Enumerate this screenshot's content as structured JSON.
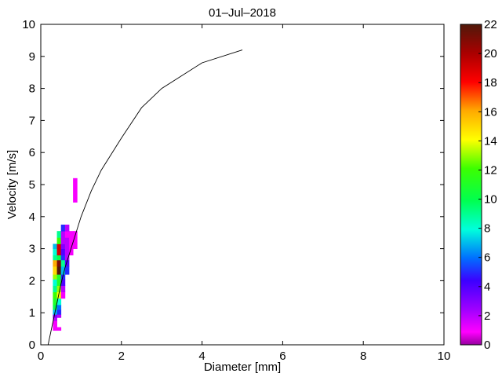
{
  "chart_data": {
    "type": "heatmap",
    "title": "01–Jul–2018",
    "xlabel": "Diameter [mm]",
    "ylabel": "Velocity [m/s]",
    "xlim": [
      0,
      10
    ],
    "ylim": [
      0,
      10
    ],
    "x_ticks": [
      0,
      2,
      4,
      6,
      8,
      10
    ],
    "y_ticks": [
      0,
      1,
      2,
      3,
      4,
      5,
      6,
      7,
      8,
      9,
      10
    ],
    "grid": false,
    "colorbar": {
      "range": [
        0,
        22
      ],
      "ticks": [
        0,
        2,
        4,
        6,
        8,
        10,
        12,
        14,
        16,
        18,
        20,
        22
      ]
    },
    "reference_curve": {
      "x": [
        0.18,
        0.3,
        0.4,
        0.5,
        0.6,
        0.8,
        1.0,
        1.25,
        1.5,
        2.0,
        2.5,
        3.0,
        4.0,
        5.0
      ],
      "y": [
        0.0,
        0.7,
        1.3,
        1.9,
        2.4,
        3.2,
        4.0,
        4.8,
        5.45,
        6.45,
        7.4,
        8.0,
        8.8,
        9.2
      ]
    },
    "cells": {
      "x_edges": [
        0.3,
        0.4,
        0.5,
        0.6,
        0.7,
        0.8,
        0.9
      ],
      "y_edges": [
        0.45,
        0.55,
        0.75,
        0.85,
        0.95,
        1.1,
        1.25,
        1.45,
        1.65,
        1.85,
        2.05,
        2.2,
        2.45,
        2.65,
        2.8,
        3.0,
        3.15,
        3.35,
        3.55,
        3.75,
        4.45,
        5.2
      ],
      "counts": [
        [
          1,
          1,
          0,
          0,
          0,
          0
        ],
        [
          1,
          0,
          0,
          0,
          0,
          0
        ],
        [
          2,
          0,
          0,
          0,
          0,
          0
        ],
        [
          3,
          2,
          0,
          0,
          0,
          0
        ],
        [
          7,
          5,
          0,
          0,
          0,
          0
        ],
        [
          10,
          6,
          0,
          0,
          0,
          0
        ],
        [
          11,
          8,
          0,
          0,
          0,
          0
        ],
        [
          12,
          14,
          1,
          0,
          0,
          0
        ],
        [
          9,
          13,
          2,
          0,
          0,
          0
        ],
        [
          8,
          11,
          4,
          0,
          0,
          0
        ],
        [
          13,
          11,
          5,
          0,
          0,
          0
        ],
        [
          15,
          22,
          7,
          5,
          0,
          0
        ],
        [
          16,
          21,
          9,
          4,
          0,
          0
        ],
        [
          9,
          10,
          5,
          2,
          0,
          0
        ],
        [
          8,
          19,
          4,
          2,
          1,
          0
        ],
        [
          7,
          19,
          3,
          2,
          1,
          1
        ],
        [
          0,
          12,
          2,
          2,
          1,
          1
        ],
        [
          0,
          9,
          2,
          1,
          1,
          1
        ],
        [
          0,
          0,
          5,
          2,
          0,
          0
        ],
        [
          0,
          0,
          0,
          0,
          0,
          0
        ],
        [
          0,
          0,
          0,
          0,
          0,
          1
        ]
      ]
    }
  }
}
